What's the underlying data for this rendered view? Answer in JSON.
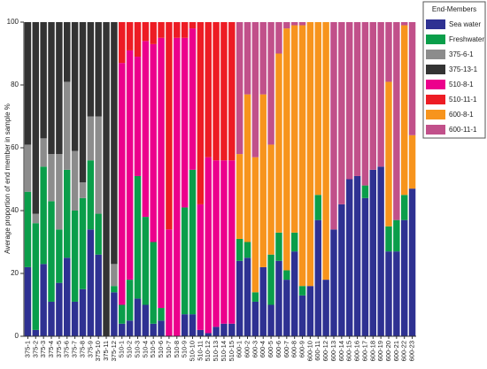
{
  "chart_data": {
    "type": "stacked_bar",
    "ylabel": "Average proportion of end member in sample %",
    "legend_title": "End-Members",
    "legend": "right",
    "categories": [
      "375-1",
      "375-2",
      "375-3",
      "375-4",
      "375-5",
      "375-6",
      "375-7",
      "375-8",
      "375-9",
      "375-10",
      "375-11",
      "375-12",
      "510-1",
      "510-2",
      "510-3",
      "510-4",
      "510-5",
      "510-6",
      "510-7",
      "510-8",
      "510-9",
      "510-10",
      "510-11",
      "510-12",
      "510-13",
      "510-14",
      "510-15",
      "600-1",
      "600-2",
      "600-3",
      "600-4",
      "600-5",
      "600-6",
      "600-7",
      "600-8",
      "600-9",
      "600-10",
      "600-11",
      "600-12",
      "600-13",
      "600-14",
      "600-15",
      "600-16",
      "600-17",
      "600-18",
      "600-19",
      "600-20",
      "600-21",
      "600-22",
      "600-23"
    ],
    "series": [
      {
        "name": "Sea water",
        "color": "#2e3192",
        "values": [
          22,
          2,
          23,
          11,
          17,
          25,
          11,
          15,
          34,
          26,
          0,
          14,
          4,
          5,
          12,
          10,
          4,
          5,
          0,
          0,
          7,
          7,
          2,
          1,
          3,
          4,
          4,
          24,
          25,
          11,
          22,
          10,
          24,
          18,
          27,
          13,
          16,
          37,
          18,
          34,
          42,
          50,
          51,
          44,
          53,
          54,
          27,
          27,
          37,
          47
        ]
      },
      {
        "name": "Freshwater",
        "color": "#0a9e4a",
        "values": [
          24,
          34,
          31,
          32,
          17,
          28,
          29,
          29,
          22,
          13,
          0,
          2,
          6,
          13,
          39,
          28,
          26,
          4,
          0,
          0,
          34,
          46,
          0,
          0,
          0,
          0,
          0,
          7,
          5,
          3,
          0,
          16,
          9,
          3,
          6,
          3,
          0,
          8,
          0,
          0,
          0,
          0,
          0,
          4,
          0,
          0,
          8,
          10,
          8,
          0
        ]
      },
      {
        "name": "375-6-1",
        "color": "#8c8c8c",
        "values": [
          15,
          3,
          9,
          15,
          24,
          28,
          19,
          5,
          14,
          31,
          0,
          7,
          0,
          0,
          0,
          0,
          0,
          0,
          0,
          0,
          0,
          0,
          0,
          0,
          0,
          0,
          0,
          0,
          0,
          0,
          0,
          0,
          0,
          0,
          0,
          0,
          0,
          0,
          0,
          0,
          0,
          0,
          0,
          0,
          0,
          0,
          0,
          0,
          0,
          0
        ]
      },
      {
        "name": "375-13-1",
        "color": "#333333",
        "values": [
          39,
          61,
          37,
          42,
          42,
          19,
          41,
          51,
          30,
          30,
          100,
          77,
          0,
          0,
          0,
          0,
          0,
          0,
          0,
          0,
          0,
          0,
          0,
          0,
          0,
          0,
          0,
          0,
          0,
          0,
          0,
          0,
          0,
          0,
          0,
          0,
          0,
          0,
          0,
          0,
          0,
          0,
          0,
          0,
          0,
          0,
          0,
          0,
          0,
          0
        ]
      },
      {
        "name": "510-8-1",
        "color": "#ec008c",
        "values": [
          0,
          0,
          0,
          0,
          0,
          0,
          0,
          0,
          0,
          0,
          0,
          0,
          77,
          73,
          38,
          56,
          63,
          86,
          34,
          95,
          54,
          45,
          40,
          56,
          53,
          52,
          52,
          0,
          0,
          0,
          0,
          0,
          0,
          0,
          0,
          0,
          0,
          0,
          0,
          0,
          0,
          0,
          0,
          0,
          0,
          0,
          0,
          0,
          0,
          0
        ]
      },
      {
        "name": "510-11-1",
        "color": "#ed1c24",
        "values": [
          0,
          0,
          0,
          0,
          0,
          0,
          0,
          0,
          0,
          0,
          0,
          0,
          13,
          9,
          11,
          6,
          7,
          5,
          66,
          5,
          5,
          2,
          58,
          43,
          44,
          44,
          44,
          0,
          0,
          0,
          0,
          0,
          0,
          0,
          0,
          0,
          0,
          0,
          0,
          0,
          0,
          0,
          0,
          0,
          0,
          0,
          0,
          0,
          0,
          0
        ]
      },
      {
        "name": "600-8-1",
        "color": "#f7941d",
        "values": [
          0,
          0,
          0,
          0,
          0,
          0,
          0,
          0,
          0,
          0,
          0,
          0,
          0,
          0,
          0,
          0,
          0,
          0,
          0,
          0,
          0,
          0,
          0,
          0,
          0,
          0,
          0,
          27,
          47,
          43,
          55,
          35,
          57,
          77,
          66,
          83,
          84,
          55,
          82,
          0,
          0,
          0,
          0,
          0,
          0,
          0,
          46,
          0,
          54,
          17
        ]
      },
      {
        "name": "600-11-1",
        "color": "#c1508a",
        "values": [
          0,
          0,
          0,
          0,
          0,
          0,
          0,
          0,
          0,
          0,
          0,
          0,
          0,
          0,
          0,
          0,
          0,
          0,
          0,
          0,
          0,
          0,
          0,
          0,
          0,
          0,
          0,
          42,
          23,
          43,
          23,
          39,
          10,
          2,
          1,
          1,
          0,
          0,
          0,
          66,
          58,
          50,
          49,
          52,
          47,
          46,
          19,
          63,
          1,
          36
        ]
      }
    ],
    "ylim": [
      0,
      100
    ],
    "yticks": [
      0,
      20,
      40,
      60,
      80,
      100
    ]
  }
}
